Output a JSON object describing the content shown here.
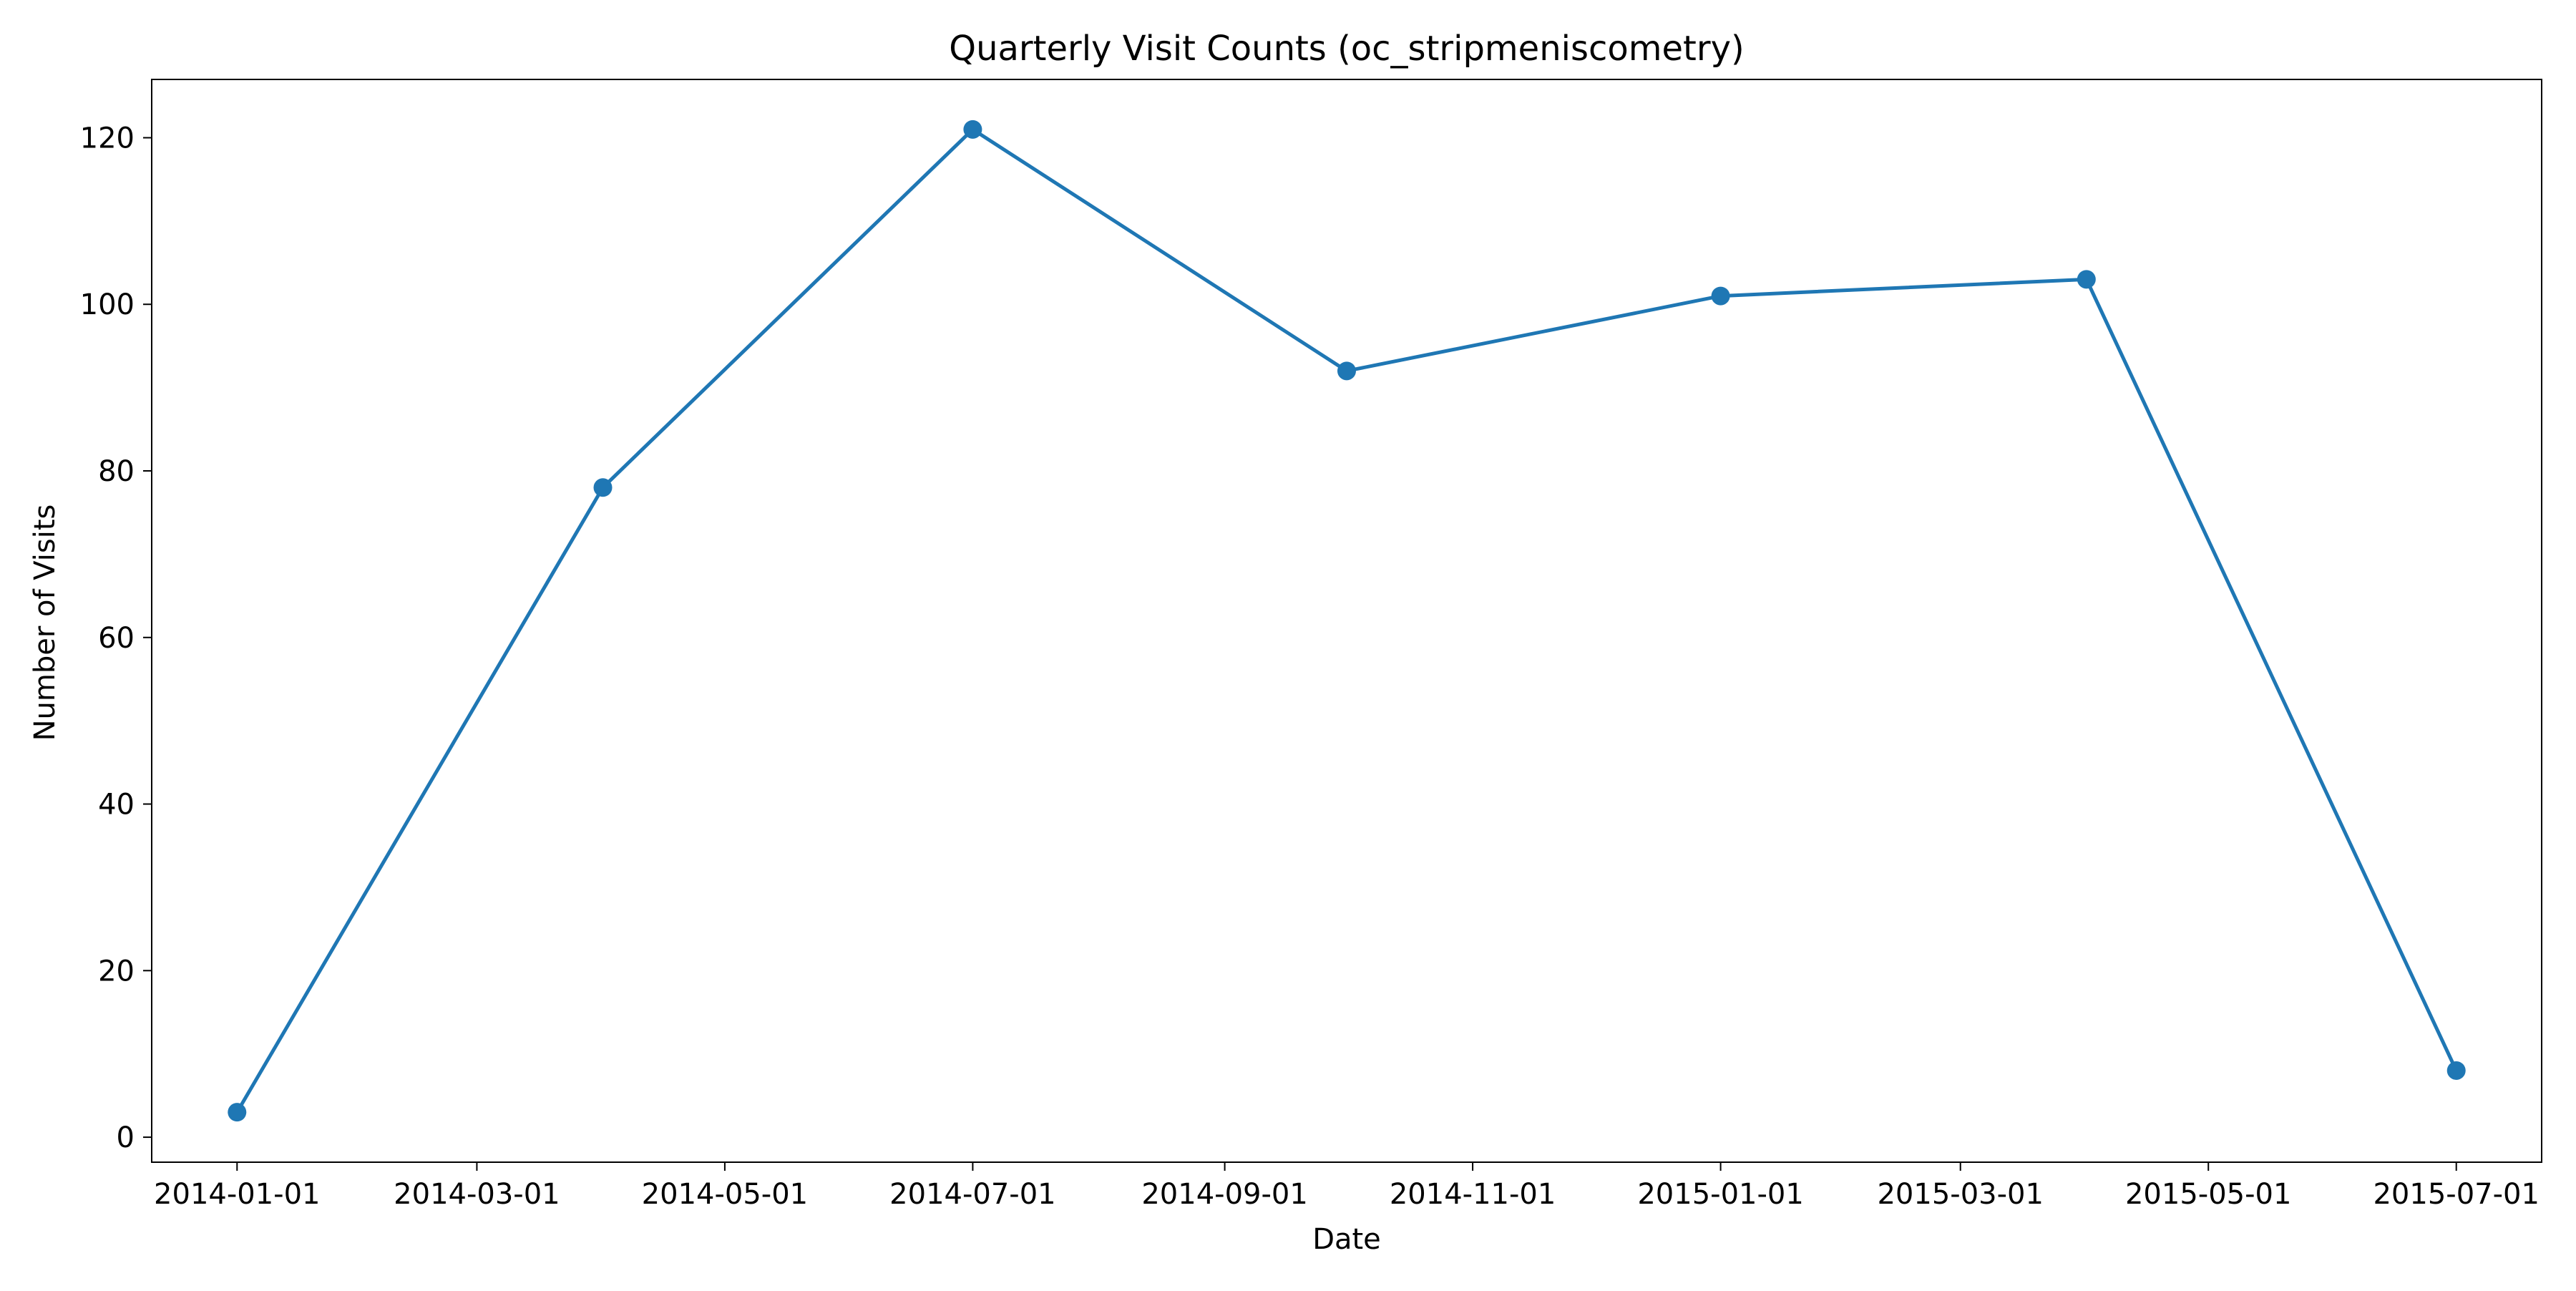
{
  "chart_data": {
    "type": "line",
    "title": "Quarterly Visit Counts (oc_stripmeniscometry)",
    "xlabel": "Date",
    "ylabel": "Number of Visits",
    "x_ticks": [
      "2014-01-01",
      "2014-03-01",
      "2014-05-01",
      "2014-07-01",
      "2014-09-01",
      "2014-11-01",
      "2015-01-01",
      "2015-03-01",
      "2015-05-01",
      "2015-07-01"
    ],
    "y_ticks": [
      0,
      20,
      40,
      60,
      80,
      100,
      120
    ],
    "xlim": [
      "2013-12-11",
      "2015-07-22"
    ],
    "ylim": [
      -3,
      127
    ],
    "grid": false,
    "legend": "none",
    "series": [
      {
        "color": "#1f77b4",
        "marker": "circle",
        "points": [
          {
            "x": "2014-01-01",
            "y": 3
          },
          {
            "x": "2014-04-01",
            "y": 78
          },
          {
            "x": "2014-07-01",
            "y": 121
          },
          {
            "x": "2014-10-01",
            "y": 92
          },
          {
            "x": "2015-01-01",
            "y": 101
          },
          {
            "x": "2015-04-01",
            "y": 103
          },
          {
            "x": "2015-07-01",
            "y": 8
          }
        ]
      }
    ]
  }
}
